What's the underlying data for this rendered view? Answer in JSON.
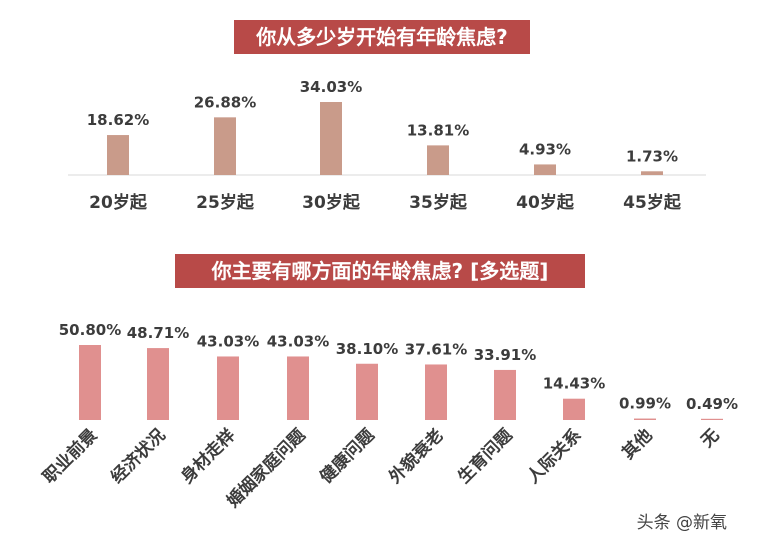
{
  "chart_data": [
    {
      "type": "bar",
      "title": "你从多少岁开始有年龄焦虑?",
      "categories": [
        "20岁起",
        "25岁起",
        "30岁起",
        "35岁起",
        "40岁起",
        "45岁起"
      ],
      "values": [
        18.62,
        26.88,
        34.03,
        13.81,
        4.93,
        1.73
      ],
      "value_labels": [
        "18.62%",
        "26.88%",
        "34.03%",
        "13.81%",
        "4.93%",
        "1.73%"
      ],
      "ylim": [
        0,
        34.03
      ],
      "grid": false,
      "colors": {
        "bar": "#c99b8a",
        "title_bg": "#b84a48"
      }
    },
    {
      "type": "bar",
      "title": "你主要有哪方面的年龄焦虑?  [多选题]",
      "categories": [
        "职业前景",
        "经济状况",
        "身材走样",
        "婚姻家庭问题",
        "健康问题",
        "外貌衰老",
        "生育问题",
        "人际关系",
        "其他",
        "无"
      ],
      "values": [
        50.8,
        48.71,
        43.03,
        43.03,
        38.1,
        37.61,
        33.91,
        14.43,
        0.99,
        0.49
      ],
      "value_labels": [
        "50.80%",
        "48.71%",
        "43.03%",
        "43.03%",
        "38.10%",
        "37.61%",
        "33.91%",
        "14.43%",
        "0.99%",
        "0.49%"
      ],
      "ylim": [
        0,
        50.8
      ],
      "grid": false,
      "colors": {
        "bar": "#e0908f",
        "title_bg": "#b84a48"
      }
    }
  ],
  "watermark": "头条 @新氧"
}
